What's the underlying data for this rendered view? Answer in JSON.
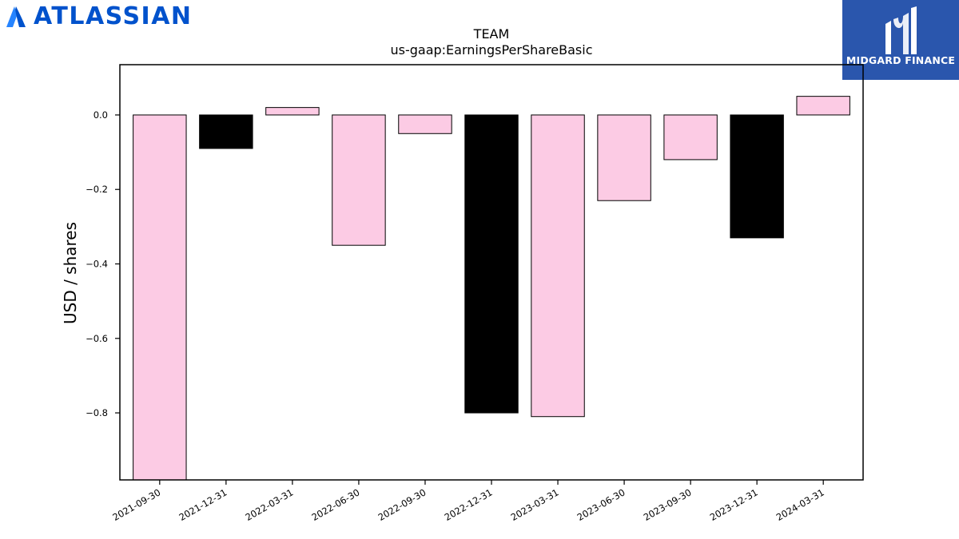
{
  "branding": {
    "company_logo_text": "ATLASSIAN",
    "company_color": "#0052cc",
    "publisher_logo_text": "MIDGARD FINANCE",
    "publisher_color": "#2a56ad"
  },
  "chart_data": {
    "type": "bar",
    "title": "TEAM",
    "subtitle": "us-gaap:EarningsPerShareBasic",
    "xlabel": "",
    "ylabel": "USD / shares",
    "categories": [
      "2021-09-30",
      "2021-12-31",
      "2022-03-31",
      "2022-06-30",
      "2022-09-30",
      "2022-12-31",
      "2023-03-31",
      "2023-06-30",
      "2023-09-30",
      "2023-12-31",
      "2024-03-31"
    ],
    "values": [
      -0.98,
      -0.09,
      0.02,
      -0.35,
      -0.05,
      -0.8,
      -0.81,
      -0.23,
      -0.12,
      -0.33,
      0.05
    ],
    "bar_colors": [
      "#fccbe4",
      "#000000",
      "#fccbe4",
      "#fccbe4",
      "#fccbe4",
      "#000000",
      "#fccbe4",
      "#fccbe4",
      "#fccbe4",
      "#000000",
      "#fccbe4"
    ],
    "ylim": [
      -0.98,
      0.135
    ],
    "yticks": [
      0.0,
      -0.2,
      -0.4,
      -0.6,
      -0.8
    ],
    "ytick_labels": [
      "0.0",
      "−0.2",
      "−0.4",
      "−0.6",
      "−0.8"
    ],
    "grid": false,
    "legend": "none"
  }
}
